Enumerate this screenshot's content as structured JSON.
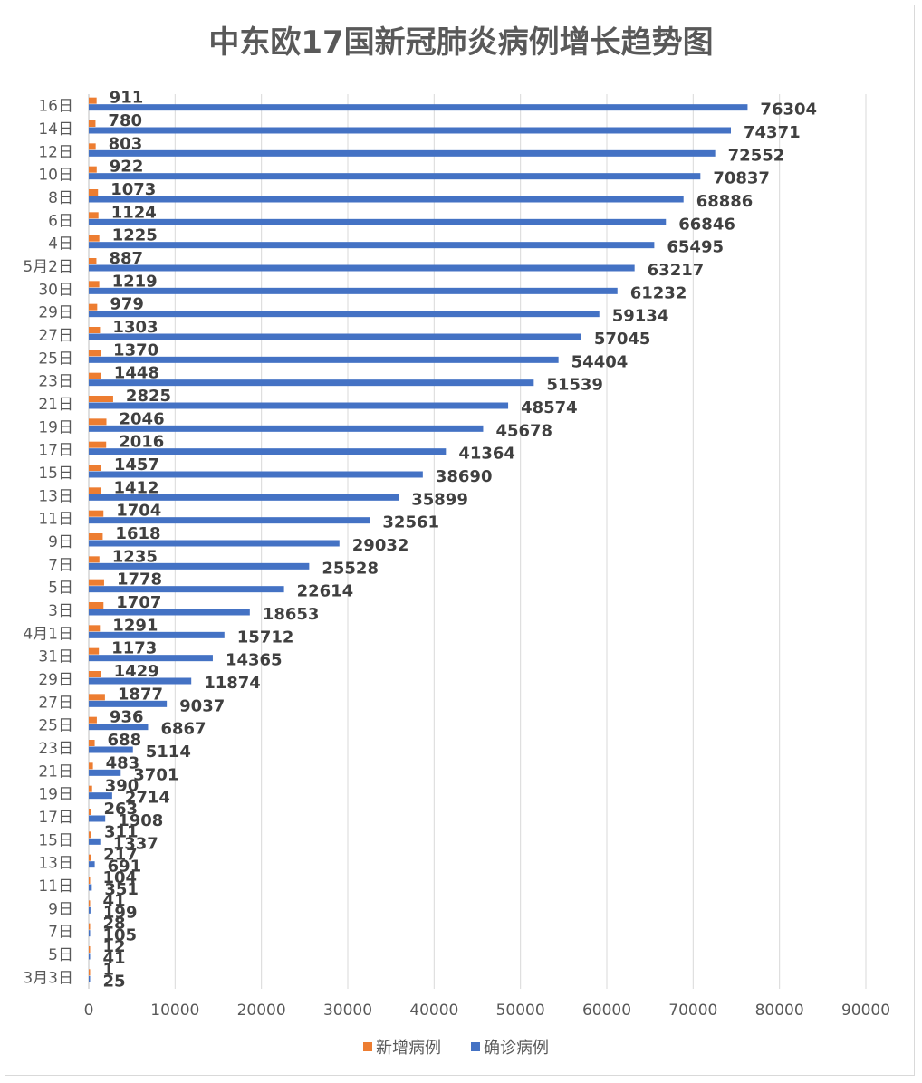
{
  "chart_data": {
    "type": "bar",
    "orientation": "horizontal",
    "title": "中东欧17国新冠肺炎病例增长趋势图",
    "categories": [
      "3月3日",
      "5日",
      "7日",
      "9日",
      "11日",
      "13日",
      "15日",
      "17日",
      "19日",
      "21日",
      "23日",
      "25日",
      "27日",
      "29日",
      "31日",
      "4月1日",
      "3日",
      "5日",
      "7日",
      "9日",
      "11日",
      "13日",
      "15日",
      "17日",
      "19日",
      "21日",
      "23日",
      "25日",
      "27日",
      "29日",
      "30日",
      "5月2日",
      "4日",
      "6日",
      "8日",
      "10日",
      "12日",
      "14日",
      "16日"
    ],
    "series": [
      {
        "name": "新增病例",
        "color": "#ed7d31",
        "values": [
          1,
          12,
          28,
          41,
          104,
          217,
          311,
          263,
          390,
          483,
          688,
          936,
          1877,
          1429,
          1173,
          1291,
          1707,
          1778,
          1235,
          1618,
          1704,
          1412,
          1457,
          2016,
          2046,
          2825,
          1448,
          1370,
          1303,
          979,
          1219,
          887,
          1225,
          1124,
          1073,
          922,
          803,
          780,
          911
        ]
      },
      {
        "name": "确诊病例",
        "color": "#4472c4",
        "values": [
          25,
          41,
          105,
          199,
          351,
          691,
          1337,
          1908,
          2714,
          3701,
          5114,
          6867,
          9037,
          11874,
          14365,
          15712,
          18653,
          22614,
          25528,
          29032,
          32561,
          35899,
          38690,
          41364,
          45678,
          48574,
          51539,
          54404,
          57045,
          59134,
          61232,
          63217,
          65495,
          66846,
          68886,
          70837,
          72552,
          74371,
          76304
        ]
      }
    ],
    "xlim": [
      0,
      90000
    ],
    "x_ticks": [
      "0",
      "10000",
      "20000",
      "30000",
      "40000",
      "50000",
      "60000",
      "70000",
      "80000",
      "90000"
    ],
    "grid": true,
    "legend": "bottom"
  }
}
